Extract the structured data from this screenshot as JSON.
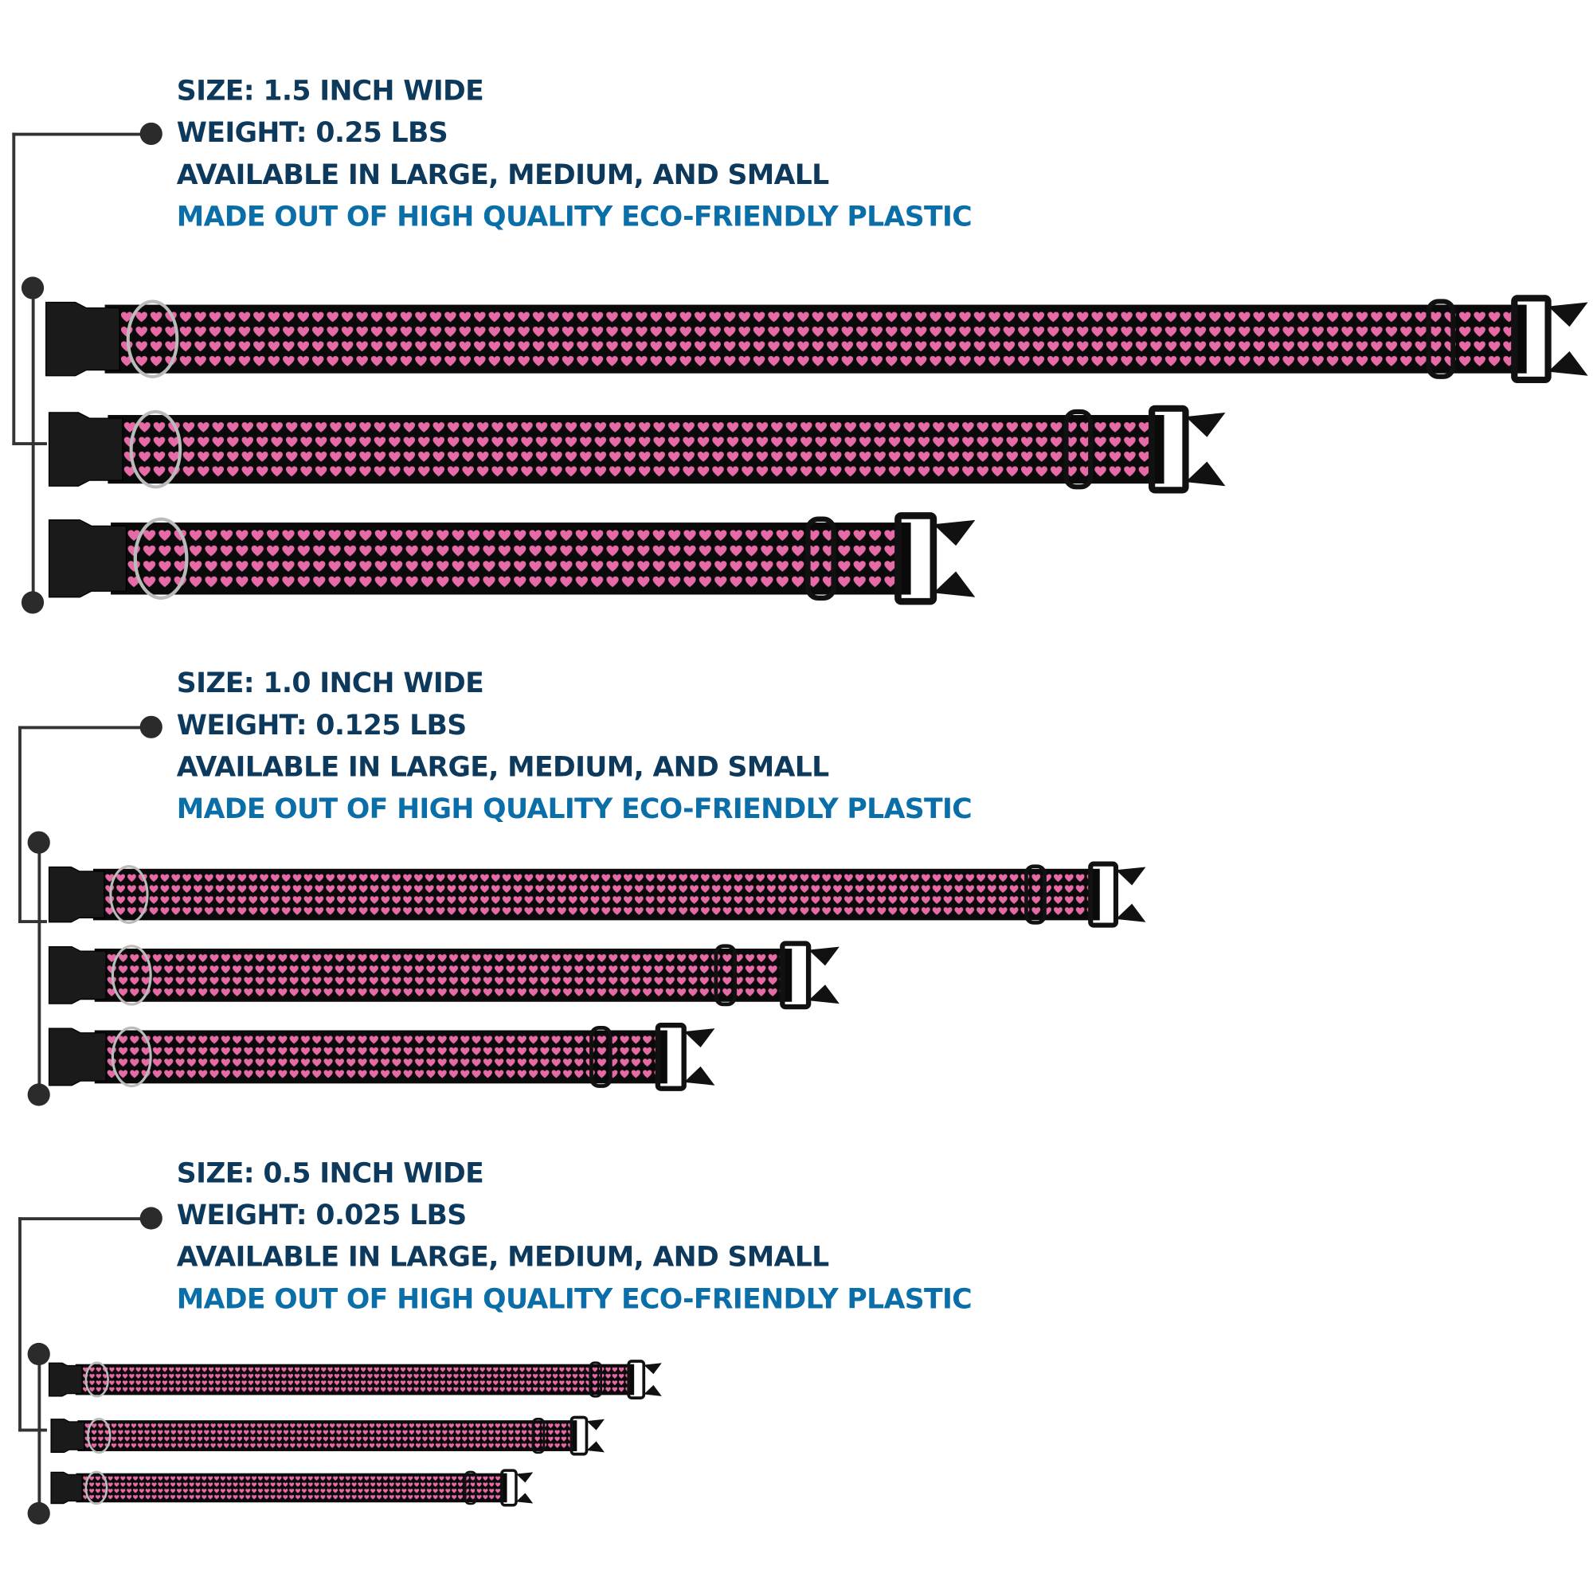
{
  "colors": {
    "heading": "#0d3a5c",
    "accent": "#0a6ea8",
    "strap": "#0a0a0a",
    "heart": "#e56aa6",
    "bracket": "#333333"
  },
  "sections": [
    {
      "size": "SIZE: 1.5 INCH WIDE",
      "weight": "WEIGHT: 0.25 LBS",
      "availability": "AVAILABLE IN LARGE, MEDIUM, AND SMALL",
      "material": "MADE OUT OF HIGH QUALITY ECO-FRIENDLY PLASTIC"
    },
    {
      "size": "SIZE: 1.0 INCH WIDE",
      "weight": "WEIGHT: 0.125 LBS",
      "availability": "AVAILABLE IN LARGE, MEDIUM, AND SMALL",
      "material": "MADE OUT OF HIGH QUALITY ECO-FRIENDLY PLASTIC"
    },
    {
      "size": "SIZE: 0.5 INCH WIDE",
      "weight": "WEIGHT: 0.025 LBS",
      "availability": "AVAILABLE IN LARGE, MEDIUM, AND SMALL",
      "material": "MADE OUT OF HIGH QUALITY ECO-FRIENDLY PLASTIC"
    }
  ],
  "pattern_icon": "heart-icon"
}
